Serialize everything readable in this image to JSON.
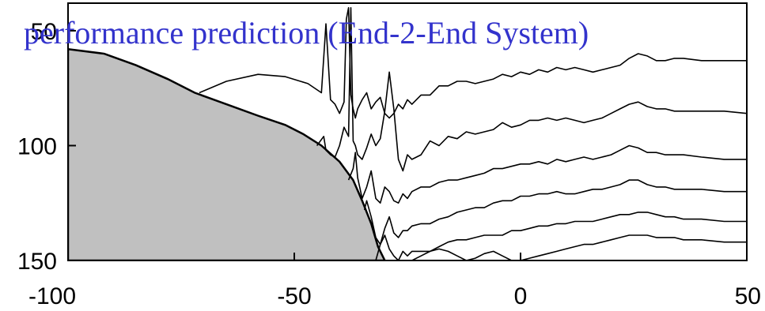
{
  "chart_data": {
    "type": "line",
    "title": "performance prediction (End-2-End System)",
    "title_color": "#3333cc",
    "xlabel": "",
    "ylabel": "",
    "xlim": [
      -100,
      50
    ],
    "ylim": [
      150,
      38
    ],
    "y_inverted": true,
    "x_ticks": [
      {
        "value": -100,
        "label": "-100"
      },
      {
        "value": -50,
        "label": "-50"
      },
      {
        "value": 0,
        "label": "0"
      },
      {
        "value": 50,
        "label": "50"
      }
    ],
    "y_ticks": [
      {
        "value": 50,
        "label": "50"
      },
      {
        "value": 100,
        "label": "100"
      },
      {
        "value": 150,
        "label": "150"
      }
    ],
    "grid": false,
    "fill_color": "#c0c0c0",
    "line_color": "#000000",
    "terrain": {
      "x": [
        -100,
        -92,
        -85,
        -78,
        -72,
        -65,
        -58,
        -52,
        -48,
        -44,
        -40,
        -37,
        -35,
        -33,
        -31.5,
        -30
      ],
      "y": [
        58,
        60,
        65,
        71,
        77,
        82,
        87,
        91,
        95,
        100,
        107,
        115,
        124,
        134,
        144,
        150
      ]
    },
    "series": [
      {
        "x": [
          -71,
          -65,
          -58,
          -52,
          -47,
          -44,
          -43,
          -42,
          -41,
          -40,
          -39,
          -38.5,
          -38,
          -37.5,
          -37,
          -36.5,
          -36,
          -35,
          -34,
          -33,
          -32,
          -31,
          -30,
          -29,
          -28,
          -27,
          -26,
          -25,
          -24,
          -22,
          -20,
          -18,
          -16,
          -14,
          -12,
          -10,
          -8,
          -6,
          -4,
          -2,
          0,
          2,
          4,
          6,
          8,
          10,
          12,
          14,
          16,
          18,
          20,
          22,
          24,
          26,
          28,
          30,
          32,
          34,
          36,
          40,
          45,
          50
        ],
        "y": [
          77,
          72,
          69,
          70,
          73,
          77,
          47,
          80,
          82,
          86,
          81,
          45,
          40,
          78,
          84,
          88,
          84,
          80,
          77,
          84,
          81,
          79,
          86,
          88,
          86,
          82,
          84,
          80,
          82,
          78,
          78,
          74,
          74,
          72,
          72,
          73,
          72,
          71,
          69,
          70,
          68,
          69,
          67,
          68,
          66,
          67,
          66,
          67,
          68,
          67,
          66,
          65,
          62,
          60,
          61,
          63,
          63,
          62,
          62,
          63,
          63,
          63
        ]
      },
      {
        "x": [
          -45,
          -43.5,
          -43,
          -42,
          -41,
          -40,
          -39,
          -38,
          -37.5,
          -37,
          -36.5,
          -36,
          -35,
          -34,
          -33,
          -32,
          -31,
          -30,
          -29,
          -28,
          -27,
          -26,
          -25,
          -24,
          -22,
          -20,
          -18,
          -16,
          -14,
          -12,
          -10,
          -8,
          -6,
          -4,
          -2,
          0,
          2,
          4,
          6,
          8,
          10,
          12,
          14,
          16,
          18,
          20,
          22,
          24,
          26,
          28,
          30,
          32,
          34,
          36,
          40,
          45,
          50
        ],
        "y": [
          100,
          96,
          102,
          104,
          105,
          100,
          92,
          96,
          40,
          98,
          100,
          104,
          106,
          101,
          95,
          100,
          97,
          85,
          68,
          84,
          106,
          111,
          104,
          106,
          104,
          98,
          100,
          96,
          97,
          94,
          95,
          94,
          93,
          90,
          92,
          91,
          89,
          89,
          88,
          89,
          88,
          89,
          90,
          89,
          88,
          86,
          84,
          82,
          81,
          83,
          84,
          84,
          85,
          85,
          85,
          85,
          86
        ]
      },
      {
        "x": [
          -38,
          -37,
          -36.5,
          -36,
          -35,
          -34,
          -33,
          -32,
          -31,
          -30,
          -29,
          -28,
          -27,
          -26,
          -25,
          -24,
          -22,
          -20,
          -18,
          -16,
          -14,
          -12,
          -10,
          -8,
          -6,
          -4,
          -2,
          0,
          2,
          4,
          6,
          8,
          10,
          12,
          14,
          16,
          18,
          20,
          22,
          24,
          26,
          28,
          30,
          32,
          34,
          36,
          40,
          45,
          50
        ],
        "y": [
          115,
          110,
          103,
          114,
          123,
          118,
          111,
          123,
          125,
          118,
          120,
          124,
          125,
          121,
          123,
          120,
          118,
          118,
          116,
          115,
          115,
          114,
          113,
          112,
          110,
          110,
          109,
          108,
          108,
          107,
          108,
          106,
          107,
          106,
          105,
          106,
          105,
          104,
          102,
          100,
          101,
          103,
          103,
          104,
          104,
          104,
          105,
          106,
          106
        ]
      },
      {
        "x": [
          -34.5,
          -34,
          -33,
          -32,
          -31,
          -30,
          -29,
          -28,
          -27,
          -26,
          -25,
          -24,
          -22,
          -20,
          -18,
          -16,
          -14,
          -12,
          -10,
          -8,
          -6,
          -4,
          -2,
          0,
          2,
          4,
          6,
          8,
          10,
          12,
          14,
          16,
          18,
          20,
          22,
          24,
          26,
          28,
          30,
          32,
          34,
          36,
          40,
          45,
          50
        ],
        "y": [
          128,
          124,
          131,
          140,
          143,
          136,
          131,
          138,
          140,
          137,
          137,
          135,
          134,
          134,
          132,
          131,
          129,
          128,
          127,
          127,
          125,
          124,
          124,
          122,
          122,
          121,
          121,
          120,
          121,
          121,
          120,
          119,
          119,
          118,
          117,
          115,
          115,
          117,
          118,
          118,
          119,
          119,
          119,
          120,
          120
        ]
      },
      {
        "x": [
          -32,
          -31,
          -30,
          -29,
          -28,
          -27,
          -26,
          -25,
          -24,
          -22,
          -20,
          -18,
          -16,
          -14,
          -12,
          -10,
          -8,
          -6,
          -4,
          -2,
          0,
          2,
          4,
          6,
          8,
          10,
          12,
          14,
          16,
          18,
          20,
          22,
          24,
          26,
          28,
          30,
          32,
          34,
          36,
          40,
          45,
          50
        ],
        "y": [
          150,
          143,
          139,
          145,
          148,
          150,
          146,
          148,
          146,
          146,
          146,
          144,
          142,
          141,
          141,
          140,
          139,
          139,
          139,
          137,
          137,
          136,
          135,
          135,
          134,
          134,
          133,
          133,
          133,
          132,
          131,
          130,
          130,
          129,
          129,
          130,
          131,
          131,
          132,
          132,
          133,
          133
        ]
      },
      {
        "x": [
          -24,
          -22,
          -20,
          -18,
          -16,
          -14,
          -12,
          -10,
          -8,
          -6,
          -4,
          -2,
          0,
          2,
          4,
          6,
          8,
          10,
          12,
          14,
          16,
          18,
          20,
          22,
          24,
          26,
          28,
          30,
          32,
          34,
          36,
          40,
          45,
          50
        ],
        "y": [
          150,
          148,
          146,
          145,
          146,
          148,
          150,
          149,
          147,
          146,
          148,
          150,
          150,
          149,
          148,
          147,
          146,
          145,
          144,
          143,
          143,
          142,
          141,
          140,
          139,
          139,
          139,
          140,
          140,
          140,
          141,
          141,
          142,
          142
        ]
      }
    ]
  }
}
